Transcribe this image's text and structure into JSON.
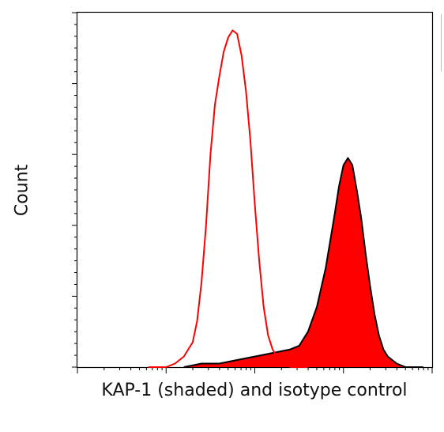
{
  "chart_data": {
    "type": "area",
    "xlabel": "KAP-1 (shaded) and isotype control",
    "ylabel": "Count",
    "x_scale": "log",
    "ylim": [
      0,
      100
    ],
    "series": [
      {
        "color": "#ff0000",
        "fill": false,
        "x": [
          0.8,
          1.0,
          1.1,
          1.2,
          1.3,
          1.35,
          1.4,
          1.45,
          1.5,
          1.55,
          1.6,
          1.65,
          1.7,
          1.75,
          1.8,
          1.85,
          1.9,
          1.95,
          2.0,
          2.05,
          2.1,
          2.15,
          2.2,
          2.25,
          2.3,
          2.35,
          2.4,
          2.5,
          2.6
        ],
        "y": [
          0,
          0,
          1,
          3,
          7,
          13,
          24,
          40,
          60,
          74,
          82,
          89,
          93,
          95,
          94,
          88,
          78,
          64,
          46,
          30,
          17,
          9,
          5,
          3,
          2,
          1,
          0,
          0,
          0
        ]
      },
      {
        "color": "#000000",
        "fill": true,
        "fill_color": "#ff0000",
        "x": [
          1.2,
          1.4,
          1.6,
          1.8,
          2.0,
          2.2,
          2.4,
          2.5,
          2.6,
          2.7,
          2.8,
          2.9,
          2.95,
          3.0,
          3.05,
          3.1,
          3.15,
          3.2,
          3.25,
          3.3,
          3.35,
          3.4,
          3.45,
          3.5,
          3.6,
          3.7,
          3.8,
          3.9
        ],
        "y": [
          0,
          1,
          1,
          2,
          3,
          4,
          5,
          6,
          10,
          17,
          28,
          43,
          51,
          57,
          59,
          57,
          50,
          42,
          32,
          23,
          15,
          9,
          5,
          3,
          1,
          0,
          0,
          0
        ]
      }
    ]
  }
}
